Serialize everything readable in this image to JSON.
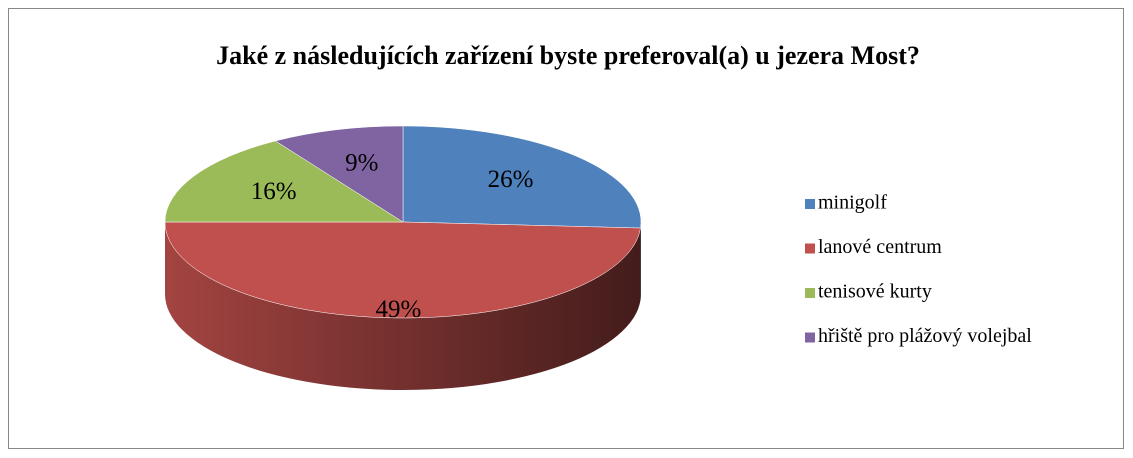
{
  "chart_data": {
    "type": "pie",
    "title": "Jaké z následujících zařízení byste preferoval(a) u jezera Most?",
    "categories": [
      "minigolf",
      "lanové centrum",
      "tenisové kurty",
      "hřiště pro plážový volejbal"
    ],
    "values": [
      26,
      49,
      16,
      9
    ],
    "value_labels": [
      "26%",
      "49%",
      "16%",
      "9%"
    ],
    "colors": [
      "#4f81bd",
      "#c0504d",
      "#9bbb59",
      "#8064a2"
    ],
    "legend": "right"
  }
}
